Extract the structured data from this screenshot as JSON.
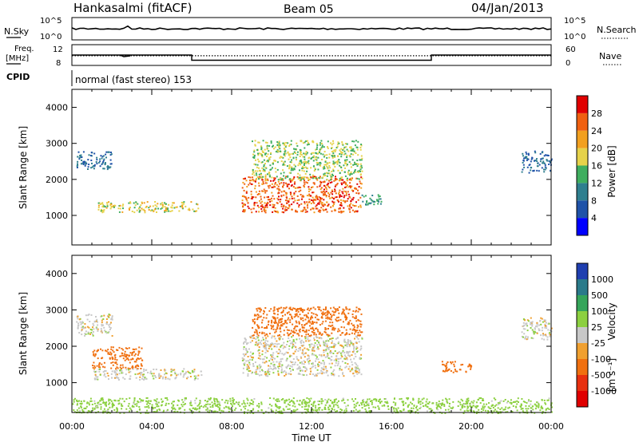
{
  "header": {
    "station": "Hankasalmi (fitACF)",
    "beam": "Beam 05",
    "date": "04/Jan/2013",
    "cpid_label": "CPID",
    "cpid_value": "normal (fast stereo) 153"
  },
  "chart_data": [
    {
      "type": "line",
      "left_label": "N.Sky",
      "right_label": "N.Search",
      "left_ticks": [
        "10^5",
        "10^0"
      ],
      "right_ticks": [
        "10^5",
        "10^0"
      ],
      "note": "N.Sky near 10^5 across the day; N.Search near zero"
    },
    {
      "type": "line",
      "left_label_top": "Freq.",
      "left_label_bottom": "[MHz]",
      "right_label": "Nave",
      "left_ticks": [
        "12",
        "8"
      ],
      "right_ticks": [
        "60",
        "0"
      ],
      "freq_segments": [
        {
          "from_h": 0,
          "to_h": 6,
          "value": 10
        },
        {
          "from_h": 6,
          "to_h": 18,
          "value": 9
        },
        {
          "from_h": 18,
          "to_h": 24,
          "value": 10
        }
      ],
      "nave_level": 28
    },
    {
      "type": "heatmap",
      "quantity": "Power",
      "ylabel": "Slant Range [km]",
      "yticks": [
        "1000",
        "2000",
        "3000",
        "4000"
      ],
      "ylim": [
        180,
        4500
      ],
      "xlim_hours": [
        0,
        24
      ],
      "colorbar_label": "Power [dB]",
      "colorbar_ticks": [
        "4",
        "8",
        "12",
        "16",
        "20",
        "24",
        "28"
      ],
      "colorbar_colors": [
        "#0000ff",
        "#1f52a8",
        "#2f7f8f",
        "#3fae5f",
        "#e6d24a",
        "#f2a020",
        "#f06010",
        "#e00000"
      ],
      "echo_regions": [
        {
          "t0": 0.2,
          "t1": 2.0,
          "r0": 2300,
          "r1": 2800,
          "level": 8
        },
        {
          "t0": 1.3,
          "t1": 6.3,
          "r0": 1100,
          "r1": 1400,
          "level": 18
        },
        {
          "t0": 8.5,
          "t1": 14.5,
          "r0": 1100,
          "r1": 2100,
          "level": 26
        },
        {
          "t0": 9.0,
          "t1": 14.5,
          "r0": 2000,
          "r1": 3100,
          "level": 16
        },
        {
          "t0": 14.5,
          "t1": 15.5,
          "r0": 1300,
          "r1": 1600,
          "level": 12
        },
        {
          "t0": 22.5,
          "t1": 24.0,
          "r0": 2200,
          "r1": 2800,
          "level": 8
        }
      ]
    },
    {
      "type": "heatmap",
      "quantity": "Velocity",
      "ylabel": "Slant Range [km]",
      "yticks": [
        "1000",
        "2000",
        "3000",
        "4000"
      ],
      "ylim": [
        180,
        4500
      ],
      "xlim_hours": [
        0,
        24
      ],
      "xlabel": "Time UT",
      "xticks": [
        "00:00",
        "04:00",
        "08:00",
        "12:00",
        "16:00",
        "20:00",
        "00:00"
      ],
      "colorbar_label": "Velocity",
      "colorbar_unit": "[m s⁻¹]",
      "colorbar_ticks": [
        "1000",
        "500",
        "100",
        "25",
        "-25",
        "-100",
        "-500",
        "-1000"
      ],
      "colorbar_colors": [
        "#1f3fb0",
        "#2a7a8a",
        "#35a55a",
        "#8cd040",
        "#c8c8c8",
        "#f0a030",
        "#f07010",
        "#e83010",
        "#e00000"
      ],
      "ground_scatter_color": "#c0c0c0",
      "echo_regions": [
        {
          "t0": 0.2,
          "t1": 2.0,
          "r0": 2300,
          "r1": 2900,
          "value": 0
        },
        {
          "t0": 1.0,
          "t1": 3.5,
          "r0": 1400,
          "r1": 2000,
          "value": -150
        },
        {
          "t0": 1.0,
          "t1": 6.5,
          "r0": 1100,
          "r1": 1400,
          "value": 0
        },
        {
          "t0": 8.5,
          "t1": 14.5,
          "r0": 1200,
          "r1": 2300,
          "value": 0
        },
        {
          "t0": 9.0,
          "t1": 14.5,
          "r0": 2300,
          "r1": 3100,
          "value": -300
        },
        {
          "t0": 18.5,
          "t1": 20.0,
          "r0": 1300,
          "r1": 1600,
          "value": -400
        },
        {
          "t0": 22.5,
          "t1": 24.0,
          "r0": 2200,
          "r1": 2800,
          "value": 0
        },
        {
          "t0": 0.0,
          "t1": 24.0,
          "r0": 180,
          "r1": 600,
          "value": 60
        }
      ]
    }
  ]
}
